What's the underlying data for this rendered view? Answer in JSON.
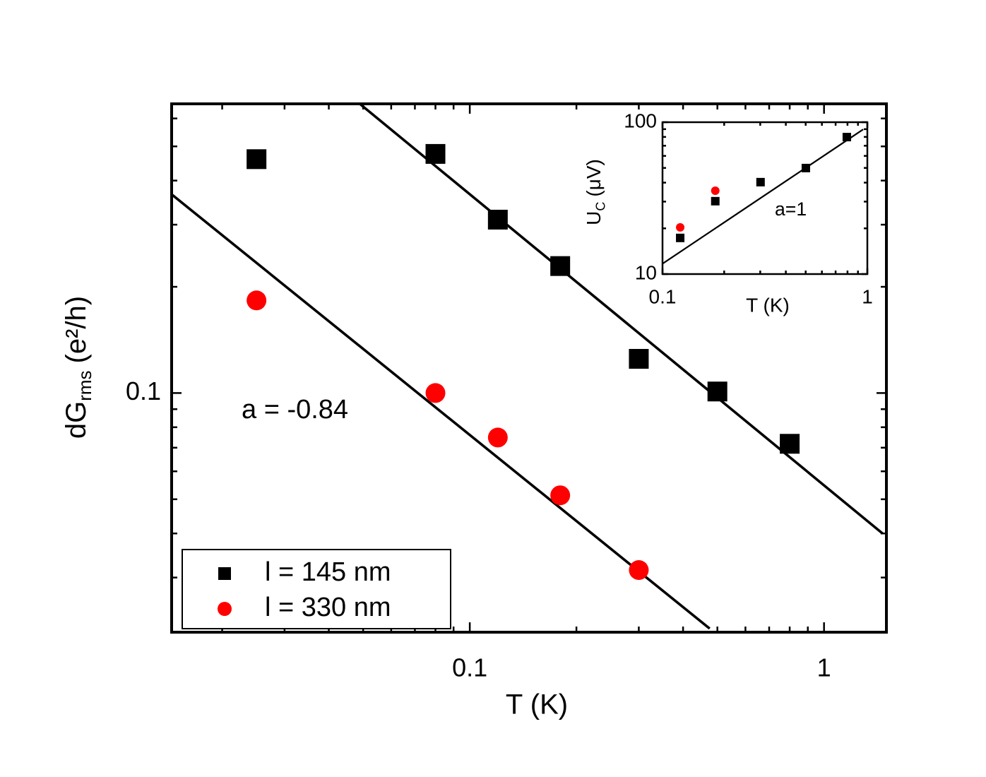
{
  "chart_data": [
    {
      "type": "scatter",
      "log_x": true,
      "log_y": true,
      "xlabel": "T (K)",
      "ylabel_parts": [
        "dG",
        "rms",
        "(e²/h)"
      ],
      "xlim": [
        0.0144,
        1.5
      ],
      "ylim": [
        0.021,
        0.66
      ],
      "xticks": [
        0.1,
        1
      ],
      "xminorticks": [
        0.02,
        0.03,
        0.04,
        0.05,
        0.06,
        0.07,
        0.08,
        0.09,
        0.2,
        0.3,
        0.4,
        0.5,
        0.6,
        0.7,
        0.8,
        0.9
      ],
      "yticks": [
        0.1
      ],
      "yminorticks": [
        0.03,
        0.04,
        0.05,
        0.06,
        0.07,
        0.08,
        0.09,
        0.2,
        0.3,
        0.4,
        0.5,
        0.6
      ],
      "annotation": "a = -0.84",
      "legend": "lower left",
      "series": [
        {
          "name": "l = 145 nm",
          "color": "#000000",
          "marker": "square",
          "x": [
            0.025,
            0.08,
            0.12,
            0.18,
            0.3,
            0.5,
            0.8
          ],
          "values": [
            0.46,
            0.476,
            0.31,
            0.229,
            0.125,
            0.101,
            0.0718
          ]
        },
        {
          "name": "l = 330 nm",
          "color": "#ff0000",
          "marker": "circle",
          "x": [
            0.025,
            0.08,
            0.12,
            0.18,
            0.3
          ],
          "values": [
            0.183,
            0.1,
            0.0748,
            0.0513,
            0.0315
          ]
        }
      ],
      "fits": [
        {
          "color": "#000000",
          "x": [
            0.0491,
            1.463
          ],
          "values": [
            0.658,
            0.04
          ]
        },
        {
          "color": "#000000",
          "x": [
            0.01443,
            0.4756
          ],
          "values": [
            0.365,
            0.0215
          ]
        }
      ]
    },
    {
      "type": "scatter",
      "log_x": true,
      "log_y": true,
      "xlabel": "T (K)",
      "ylabel_parts": [
        "U",
        "C",
        "(μV)"
      ],
      "xlim": [
        0.1,
        1
      ],
      "ylim": [
        10,
        100
      ],
      "xticks": [
        0.1,
        1
      ],
      "xminorticks": [
        0.2,
        0.3,
        0.4,
        0.5,
        0.6,
        0.7,
        0.8,
        0.9
      ],
      "yticks": [
        10,
        100
      ],
      "yminorticks": [
        20,
        30,
        40,
        50,
        60,
        70,
        80,
        90
      ],
      "annotation": "a=1",
      "series": [
        {
          "color": "#000000",
          "marker": "square",
          "x": [
            0.122,
            0.181,
            0.301,
            0.501,
            0.794
          ],
          "values": [
            17.3,
            30.2,
            40.3,
            49.9,
            79.8
          ]
        },
        {
          "color": "#ff0000",
          "marker": "circle",
          "x": [
            0.122,
            0.181
          ],
          "values": [
            20.3,
            35.4
          ]
        }
      ],
      "fits": [
        {
          "color": "#000000",
          "x": [
            0.1,
            0.954
          ],
          "values": [
            11.7,
            89.7
          ]
        }
      ]
    }
  ]
}
